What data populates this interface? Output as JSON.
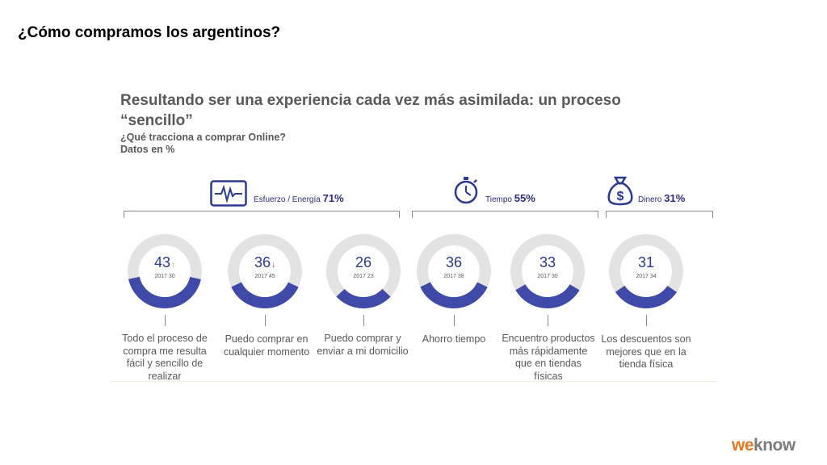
{
  "page": {
    "title": "¿Cómo compramos los argentinos?",
    "brand_prefix": "we",
    "brand_suffix": "know"
  },
  "slide": {
    "headline": "Resultando ser una experiencia cada vez más asimilada: un proceso “sencillo”",
    "subtitle_line1": "¿Qué tracciona a comprar Online?",
    "subtitle_line2": "Datos en %"
  },
  "groups": [
    {
      "label": "Esfuerzo / Energía",
      "pct": "71%",
      "icon": "heartbeat-monitor-icon"
    },
    {
      "label": "Tiempo",
      "pct": "55%",
      "icon": "stopwatch-icon"
    },
    {
      "label": "Dinero",
      "pct": "31%",
      "icon": "money-bag-icon"
    }
  ],
  "colors": {
    "ring_fill": "#3f4aa8",
    "ring_track": "#e3e3e3",
    "value_text": "#2b3990",
    "trend_up": "#8cc63f",
    "trend_down": "#d7262c",
    "brand_accent": "#e87722"
  },
  "chart_data": {
    "type": "donut",
    "unit": "%",
    "max": 100,
    "items": [
      {
        "group": "Esfuerzo / Energía",
        "value": 43,
        "value_label": "43",
        "prev_label": "2017 30",
        "trend": "up",
        "label": "Todo el proceso de compra me resulta fácil y sencillo de realizar"
      },
      {
        "group": "Esfuerzo / Energía",
        "value": 36,
        "value_label": "36",
        "prev_label": "2017 45",
        "trend": "down",
        "label": "Puedo comprar en cualquier momento"
      },
      {
        "group": "Esfuerzo / Energía",
        "value": 26,
        "value_label": "26",
        "prev_label": "2017 23",
        "trend": "",
        "label": "Puedo comprar y enviar a mi domicilio"
      },
      {
        "group": "Tiempo",
        "value": 36,
        "value_label": "36",
        "prev_label": "2017 38",
        "trend": "",
        "label": "Ahorro tiempo"
      },
      {
        "group": "Tiempo",
        "value": 33,
        "value_label": "33",
        "prev_label": "2017 30",
        "trend": "",
        "label": "Encuentro productos más rápidamente que en tiendas físicas"
      },
      {
        "group": "Dinero",
        "value": 31,
        "value_label": "31",
        "prev_label": "2017 34",
        "trend": "",
        "label": "Los descuentos son mejores que en la tienda física"
      }
    ]
  }
}
